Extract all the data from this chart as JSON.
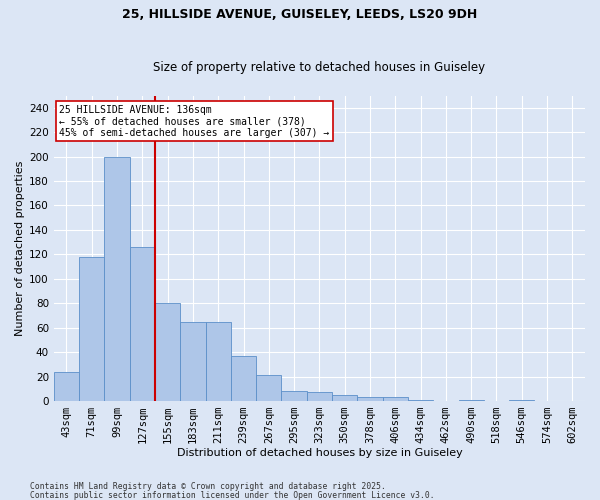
{
  "title1": "25, HILLSIDE AVENUE, GUISELEY, LEEDS, LS20 9DH",
  "title2": "Size of property relative to detached houses in Guiseley",
  "xlabel": "Distribution of detached houses by size in Guiseley",
  "ylabel": "Number of detached properties",
  "categories": [
    "43sqm",
    "71sqm",
    "99sqm",
    "127sqm",
    "155sqm",
    "183sqm",
    "211sqm",
    "239sqm",
    "267sqm",
    "295sqm",
    "323sqm",
    "350sqm",
    "378sqm",
    "406sqm",
    "434sqm",
    "462sqm",
    "490sqm",
    "518sqm",
    "546sqm",
    "574sqm",
    "602sqm"
  ],
  "values": [
    24,
    118,
    200,
    126,
    80,
    65,
    65,
    37,
    21,
    8,
    7,
    5,
    3,
    3,
    1,
    0,
    1,
    0,
    1,
    0,
    0
  ],
  "bar_color": "#aec6e8",
  "bar_edge_color": "#5b8fc9",
  "background_color": "#dce6f5",
  "grid_color": "#ffffff",
  "annotation_text": "25 HILLSIDE AVENUE: 136sqm\n← 55% of detached houses are smaller (378)\n45% of semi-detached houses are larger (307) →",
  "vline_x": 3.5,
  "vline_color": "#cc0000",
  "annotation_box_color": "#ffffff",
  "annotation_box_edge": "#cc0000",
  "footer1": "Contains HM Land Registry data © Crown copyright and database right 2025.",
  "footer2": "Contains public sector information licensed under the Open Government Licence v3.0.",
  "ylim": [
    0,
    250
  ],
  "yticks": [
    0,
    20,
    40,
    60,
    80,
    100,
    120,
    140,
    160,
    180,
    200,
    220,
    240
  ]
}
